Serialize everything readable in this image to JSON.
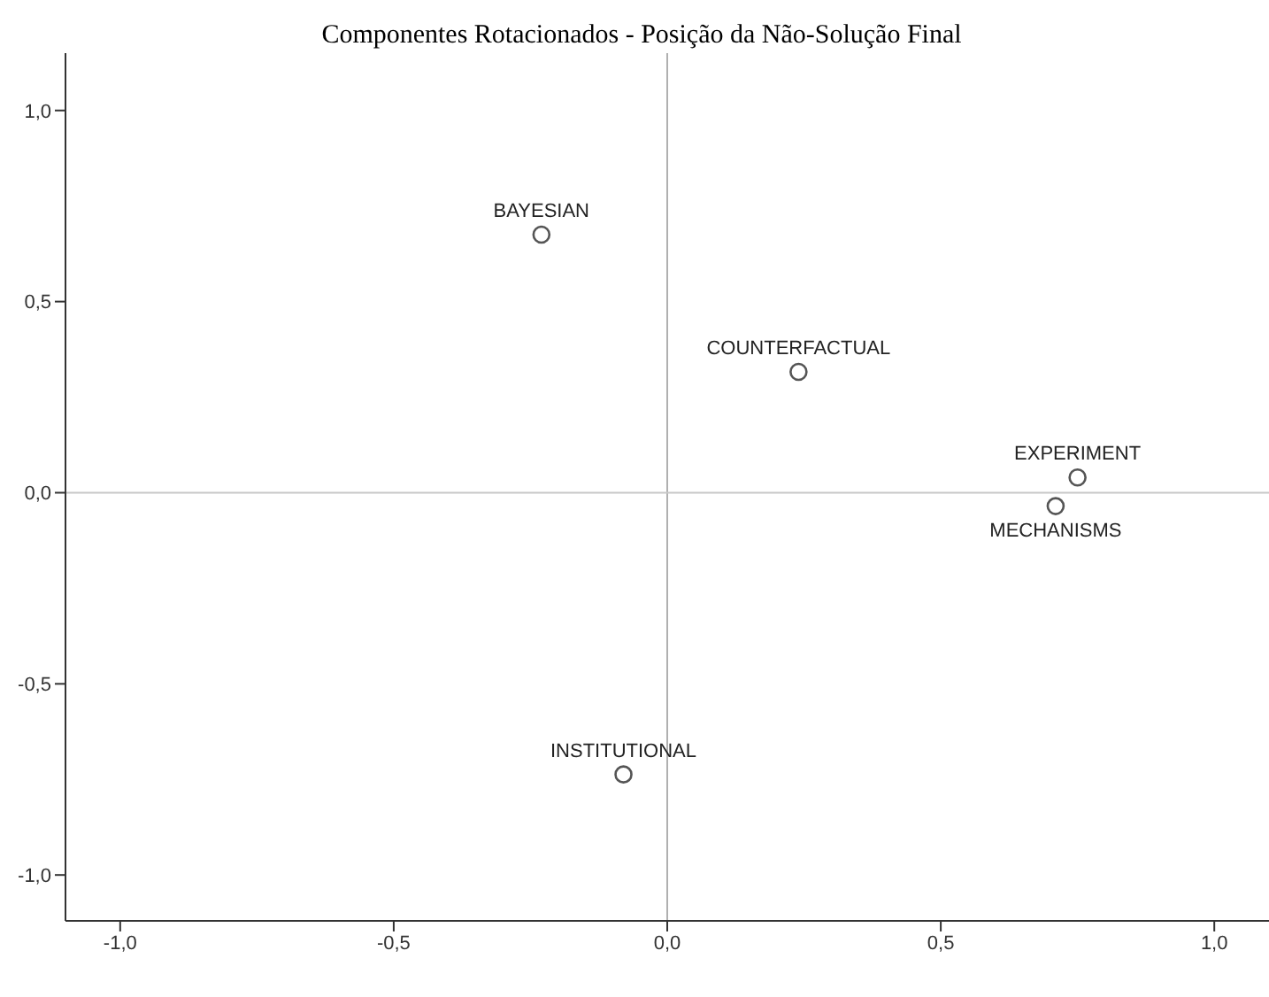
{
  "chart_data": {
    "type": "scatter",
    "title": "Componentes Rotacionados - Posição da Não-Solução Final",
    "series": [
      {
        "color": "#555555",
        "x": [
          -0.23,
          0.24,
          0.75,
          0.71,
          -0.08
        ],
        "values": [
          0.675,
          0.316,
          0.04,
          -0.035,
          -0.737
        ]
      }
    ],
    "marker": "circle",
    "xlim": [
      -1.1,
      1.1
    ],
    "ylim": [
      -1.12,
      1.15
    ],
    "xticks": [
      {
        "value": -1,
        "label": "-1,0"
      },
      {
        "value": -0.5,
        "label": "-0,5"
      },
      {
        "value": 0,
        "label": "0,0"
      },
      {
        "value": 0.5,
        "label": "0,5"
      },
      {
        "value": 1,
        "label": "1,0"
      }
    ],
    "yticks": [
      {
        "value": -1,
        "label": "-1,0"
      },
      {
        "value": -0.5,
        "label": "-0,5"
      },
      {
        "value": 0,
        "label": "0,0"
      },
      {
        "value": 0.5,
        "label": "0,5"
      },
      {
        "value": 1,
        "label": "1,0"
      }
    ],
    "ref_lines": [
      {
        "axis": "x",
        "value": 0,
        "color": "#b0b0b0"
      },
      {
        "axis": "y",
        "value": 0,
        "color": "#c8c8c8"
      }
    ],
    "annotations": [
      {
        "text": "BAYESIAN",
        "x": -0.23,
        "y": 0.675
      },
      {
        "text": "COUNTERFACTUAL",
        "x": 0.24,
        "y": 0.316
      },
      {
        "text": "EXPERIMENT",
        "x": 0.75,
        "y": 0.04
      },
      {
        "text": "MECHANISMS",
        "x": 0.71,
        "y": -0.035
      },
      {
        "text": "INSTITUTIONAL",
        "x": -0.08,
        "y": -0.737
      }
    ]
  }
}
